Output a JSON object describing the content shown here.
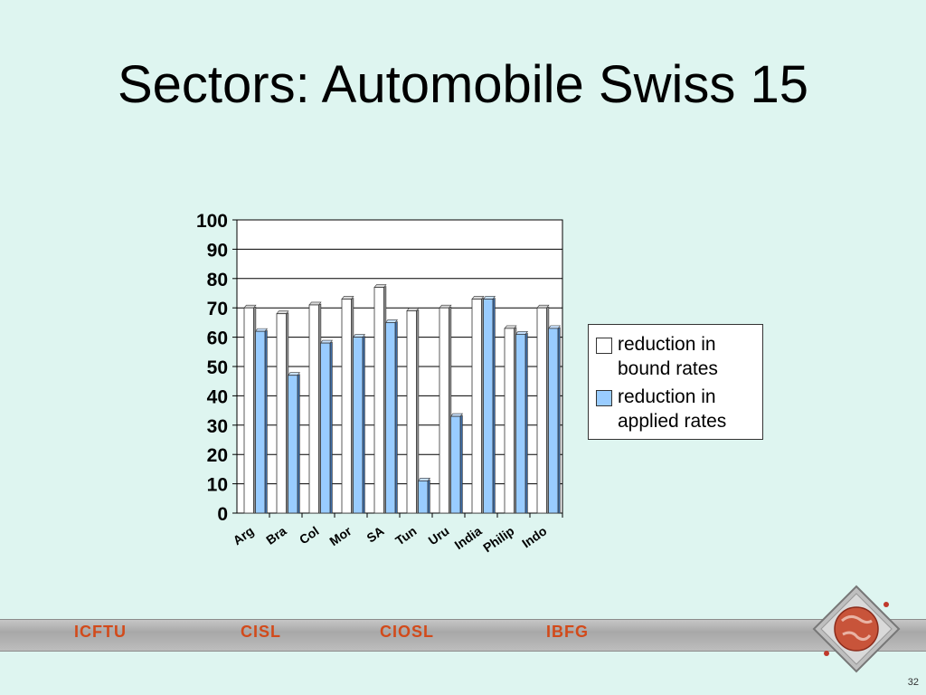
{
  "slide": {
    "title": "Sectors: Automobile Swiss 15",
    "page_number": "32"
  },
  "footer": {
    "orgs": [
      "ICFTU",
      "CISL",
      "CIOSL",
      "IBFG"
    ]
  },
  "legend": {
    "series1": "reduction in bound rates",
    "series2": "reduction in applied rates"
  },
  "colors": {
    "background": "#def5f0",
    "bound": "#ffffff",
    "applied": "#99ccff",
    "org_text": "#d24a1a"
  },
  "chart_data": {
    "type": "bar",
    "categories": [
      "Arg",
      "Bra",
      "Col",
      "Mor",
      "SA",
      "Tun",
      "Uru",
      "India",
      "Philip",
      "Indo"
    ],
    "series": [
      {
        "name": "reduction in bound rates",
        "values": [
          70,
          68,
          71,
          73,
          77,
          69,
          70,
          73,
          63,
          70
        ]
      },
      {
        "name": "reduction in applied rates",
        "values": [
          62,
          47,
          58,
          60,
          65,
          11,
          33,
          73,
          61,
          63
        ]
      }
    ],
    "yticks": [
      "0",
      "10",
      "20",
      "30",
      "40",
      "50",
      "60",
      "70",
      "80",
      "90",
      "100"
    ],
    "ylim": [
      0,
      100
    ],
    "grid": true,
    "legend_position": "right"
  }
}
